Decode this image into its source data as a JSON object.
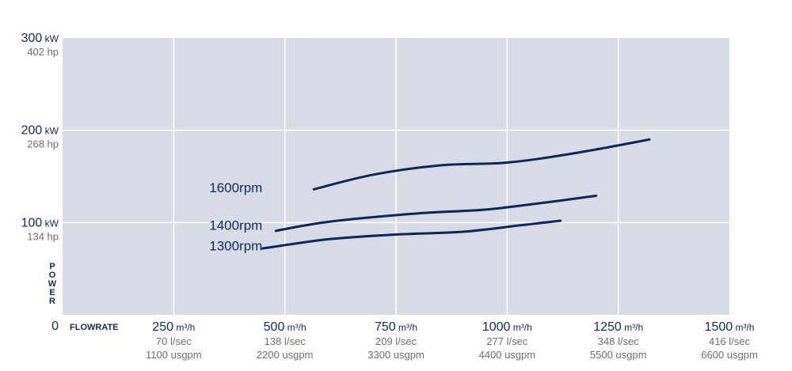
{
  "chart_data": {
    "type": "line",
    "title": "",
    "xlabel": "FLOWRATE",
    "ylabel": "POWER",
    "xlim": [
      0,
      1500
    ],
    "ylim": [
      0,
      300
    ],
    "grid": true,
    "origin_label": "0",
    "y_ticks": [
      {
        "value": 100,
        "main": "100",
        "unit": "kW",
        "alt": "134 hp"
      },
      {
        "value": 200,
        "main": "200",
        "unit": "kW",
        "alt": "268 hp"
      },
      {
        "value": 300,
        "main": "300",
        "unit": "kW",
        "alt": "402 hp"
      }
    ],
    "x_ticks": [
      {
        "value": 250,
        "main": "250",
        "unit": "m³/h",
        "alt1": "70 l/sec",
        "alt2": "1100 usgpm"
      },
      {
        "value": 500,
        "main": "500",
        "unit": "m³/h",
        "alt1": "138 l/sec",
        "alt2": "2200 usgpm"
      },
      {
        "value": 750,
        "main": "750",
        "unit": "m³/h",
        "alt1": "209 l/sec",
        "alt2": "3300 usgpm"
      },
      {
        "value": 1000,
        "main": "1000",
        "unit": "m³/h",
        "alt1": "277 l/sec",
        "alt2": "4400 usgpm"
      },
      {
        "value": 1250,
        "main": "1250",
        "unit": "m³/h",
        "alt1": "348 l/sec",
        "alt2": "5500 usgpm"
      },
      {
        "value": 1500,
        "main": "1500",
        "unit": "m³/h",
        "alt1": "416 l/sec",
        "alt2": "6600 usgpm"
      }
    ],
    "series": [
      {
        "name": "1600rpm",
        "points": [
          [
            565,
            136
          ],
          [
            700,
            152
          ],
          [
            850,
            162
          ],
          [
            1000,
            165
          ],
          [
            1150,
            175
          ],
          [
            1320,
            190
          ]
        ]
      },
      {
        "name": "1400rpm",
        "points": [
          [
            480,
            91
          ],
          [
            600,
            101
          ],
          [
            800,
            110
          ],
          [
            950,
            114
          ],
          [
            1090,
            122
          ],
          [
            1200,
            129
          ]
        ]
      },
      {
        "name": "1300rpm",
        "points": [
          [
            450,
            72
          ],
          [
            600,
            82
          ],
          [
            750,
            87
          ],
          [
            900,
            90
          ],
          [
            1030,
            97
          ],
          [
            1120,
            102
          ]
        ]
      }
    ],
    "series_label_positions": [
      {
        "series": "1600rpm",
        "x": 330,
        "y": 133
      },
      {
        "series": "1400rpm",
        "x": 330,
        "y": 92
      },
      {
        "series": "1300rpm",
        "x": 330,
        "y": 70
      }
    ]
  }
}
